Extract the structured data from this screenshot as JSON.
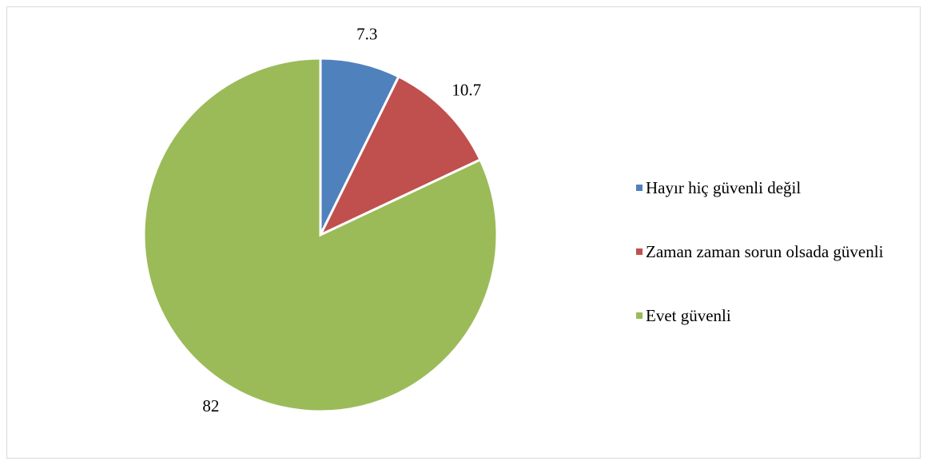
{
  "chart_data": {
    "type": "pie",
    "categories": [
      "Hayır hiç güvenli değil",
      "Zaman zaman sorun olsada güvenli",
      "Evet güvenli"
    ],
    "values": [
      7.3,
      10.7,
      82
    ],
    "colors": [
      "#4f81bd",
      "#c0504d",
      "#9bbb59"
    ],
    "legend": "right"
  }
}
